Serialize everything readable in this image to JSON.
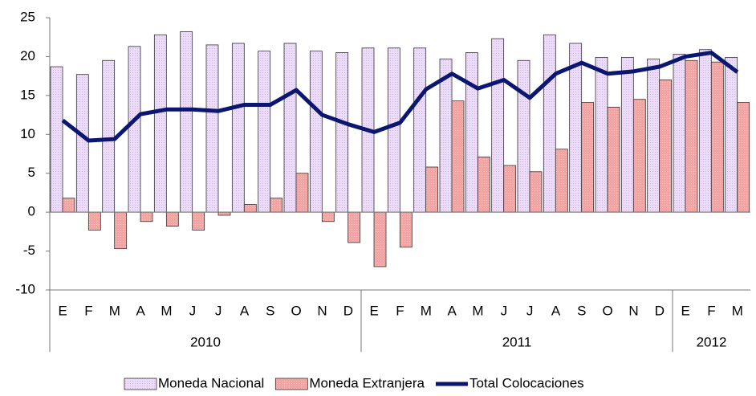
{
  "chart_data": {
    "type": "bar_line",
    "categories": [
      "E",
      "F",
      "M",
      "A",
      "M",
      "J",
      "J",
      "A",
      "S",
      "O",
      "N",
      "D",
      "E",
      "F",
      "M",
      "A",
      "M",
      "J",
      "J",
      "A",
      "S",
      "O",
      "N",
      "D",
      "E",
      "F",
      "M"
    ],
    "category_groups": [
      {
        "label": "2010",
        "count": 12
      },
      {
        "label": "2011",
        "count": 12
      },
      {
        "label": "2012",
        "count": 3
      }
    ],
    "series": [
      {
        "name": "Moneda Nacional",
        "type": "bar",
        "color": "#ecdcfa",
        "values": [
          18.7,
          17.7,
          19.5,
          21.3,
          22.8,
          23.2,
          21.5,
          21.7,
          20.7,
          21.7,
          20.7,
          20.5,
          21.1,
          21.1,
          21.1,
          19.7,
          20.5,
          22.3,
          19.5,
          22.8,
          21.7,
          19.9,
          19.9,
          19.7,
          20.3,
          20.9,
          19.9
        ]
      },
      {
        "name": "Moneda Extranjera",
        "type": "bar",
        "color": "#f4a3a3",
        "values": [
          1.8,
          -2.3,
          -4.7,
          -1.2,
          -1.8,
          -2.3,
          -0.4,
          1.0,
          1.8,
          5.0,
          -1.2,
          -3.9,
          -7.0,
          -4.5,
          5.8,
          14.3,
          7.1,
          6.0,
          5.2,
          8.1,
          14.1,
          13.5,
          14.5,
          17.0,
          19.5,
          19.3,
          14.1
        ]
      },
      {
        "name": "Total Colocaciones",
        "type": "line",
        "color": "#0b1670",
        "values": [
          11.8,
          9.2,
          9.4,
          12.6,
          13.2,
          13.2,
          13.0,
          13.8,
          13.8,
          15.7,
          12.5,
          11.3,
          10.3,
          11.5,
          15.8,
          17.8,
          15.9,
          17.0,
          14.7,
          17.8,
          19.2,
          17.8,
          18.1,
          18.7,
          20.0,
          20.5,
          18.0
        ]
      }
    ],
    "ylim": [
      -10,
      25
    ],
    "yticks": [
      -10,
      -5,
      0,
      5,
      10,
      15,
      20,
      25
    ],
    "grid": false,
    "legend": "bottom"
  }
}
